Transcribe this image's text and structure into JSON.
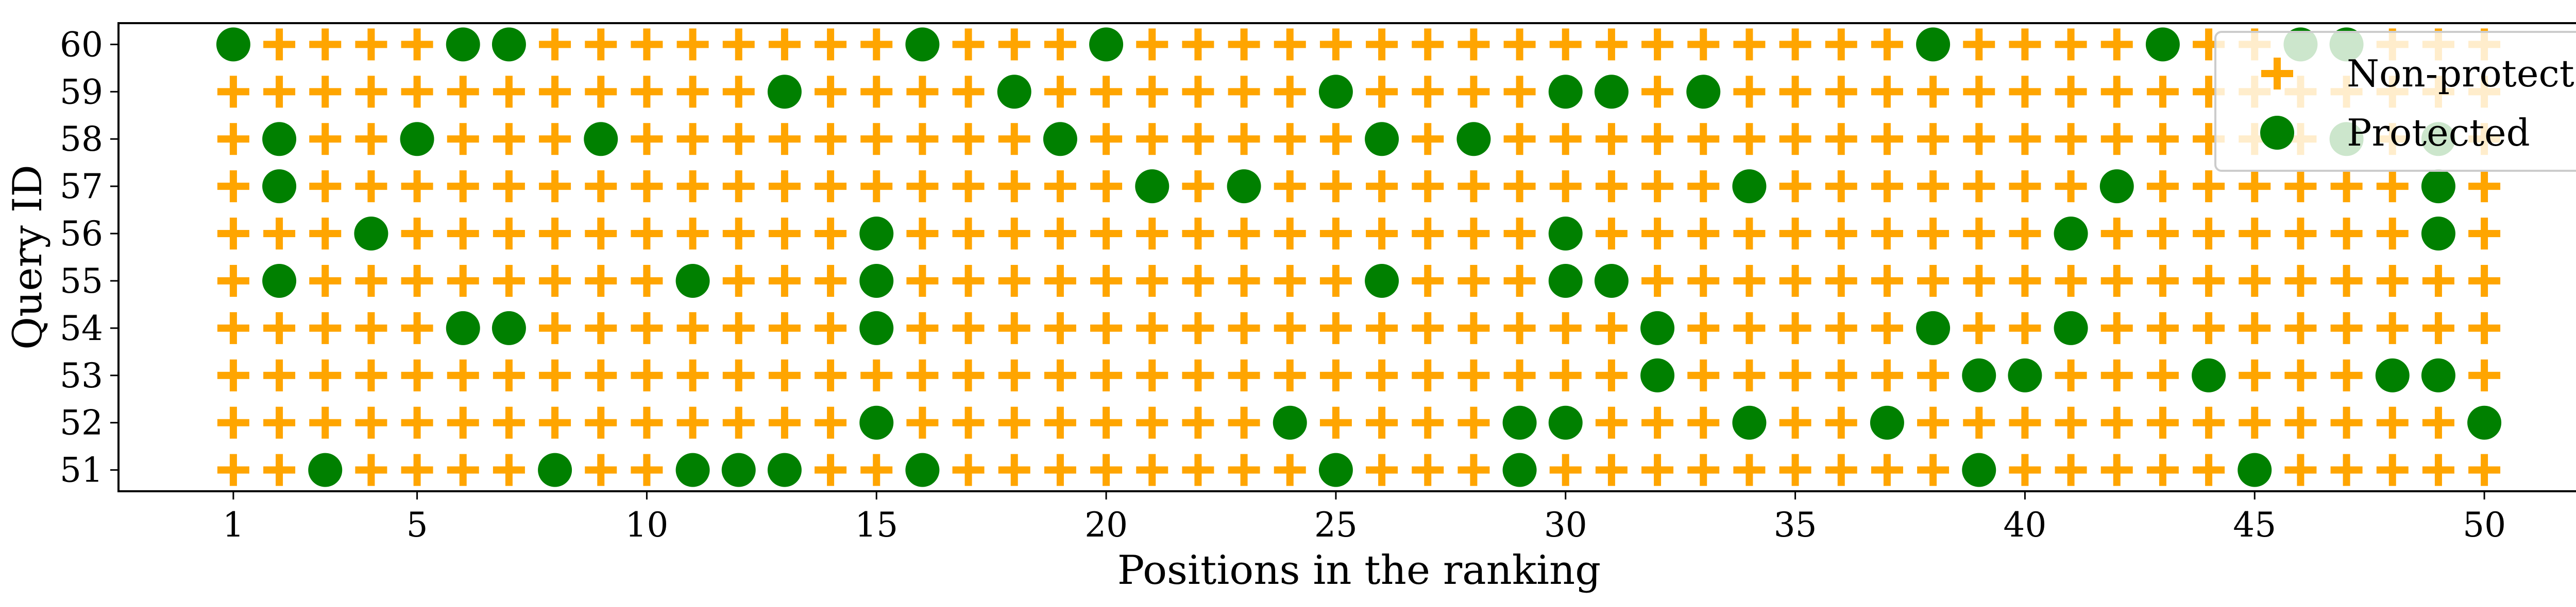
{
  "chart_data": {
    "type": "scatter",
    "xlabel": "Positions in the ranking",
    "ylabel": "Query ID",
    "xlim": [
      -1.5,
      52.5
    ],
    "ylim": [
      50.55,
      60.45
    ],
    "x_ticks": [
      1,
      5,
      10,
      15,
      20,
      25,
      30,
      35,
      40,
      45,
      50
    ],
    "y_ticks": [
      51,
      52,
      53,
      54,
      55,
      56,
      57,
      58,
      59,
      60
    ],
    "grid": false,
    "legend_position": "top-right",
    "colors": {
      "non_protected": "#ffa500",
      "protected": "#008000"
    },
    "positions": [
      1,
      50
    ],
    "queries": [
      51,
      60
    ],
    "series": [
      {
        "name": "Non-protected",
        "marker": "plus",
        "note_values": "every (position, query) cell not listed as protected"
      },
      {
        "name": "Protected",
        "marker": "circle",
        "protected_by_query": {
          "60": [
            1,
            6,
            7,
            16,
            20,
            38,
            43,
            46,
            47
          ],
          "59": [
            13,
            18,
            25,
            30,
            31,
            33
          ],
          "58": [
            2,
            5,
            9,
            19,
            26,
            28,
            47,
            49
          ],
          "57": [
            2,
            21,
            23,
            34,
            42,
            49
          ],
          "56": [
            4,
            15,
            30,
            41,
            49
          ],
          "55": [
            2,
            11,
            15,
            26,
            30,
            31
          ],
          "54": [
            6,
            7,
            15,
            32,
            38,
            41
          ],
          "53": [
            32,
            39,
            40,
            44,
            48,
            49
          ],
          "52": [
            15,
            24,
            29,
            30,
            34,
            37,
            50
          ],
          "51": [
            3,
            8,
            11,
            12,
            13,
            16,
            25,
            29,
            39,
            45
          ]
        }
      }
    ]
  }
}
